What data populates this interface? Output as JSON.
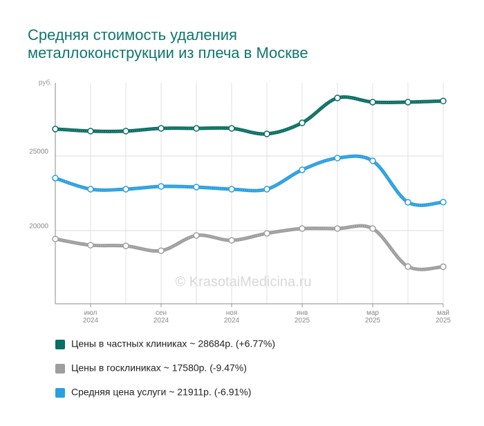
{
  "chart_data": {
    "type": "line",
    "title": "Средняя стоимость удаления металлоконструкции из плеча в Москве",
    "y_label": "руб.",
    "watermark": "© KrasotaiMedicina.ru",
    "categories": [
      null,
      "июл 2024",
      null,
      "сен 2024",
      null,
      "ноя 2024",
      null,
      "янв 2025",
      null,
      "мар 2025",
      null,
      "май 2025"
    ],
    "series": [
      {
        "name": "Цены в частных клиниках ~ 28684р. (+6.77%)",
        "color": "#0b6e62",
        "values": [
          26806,
          26667,
          26667,
          26852,
          26852,
          26852,
          26481,
          27222,
          28889,
          28611,
          28611,
          28684
        ]
      },
      {
        "name": "Цены в госклиниках ~ 17580р. (-9.47%)",
        "color": "#9e9e9e",
        "values": [
          19444,
          19028,
          18981,
          18657,
          19676,
          19352,
          19815,
          20139,
          20139,
          20139,
          17593,
          17580
        ]
      },
      {
        "name": "Средняя цена услуги ~ 21911р. (-6.91%)",
        "color": "#2a9fe0",
        "values": [
          23519,
          22778,
          22778,
          22963,
          22917,
          22778,
          22778,
          24074,
          24861,
          24676,
          21898,
          21911
        ]
      }
    ],
    "ylim": [
      15100,
      29900
    ],
    "yticks": [
      20000,
      25000
    ],
    "grid": true
  }
}
